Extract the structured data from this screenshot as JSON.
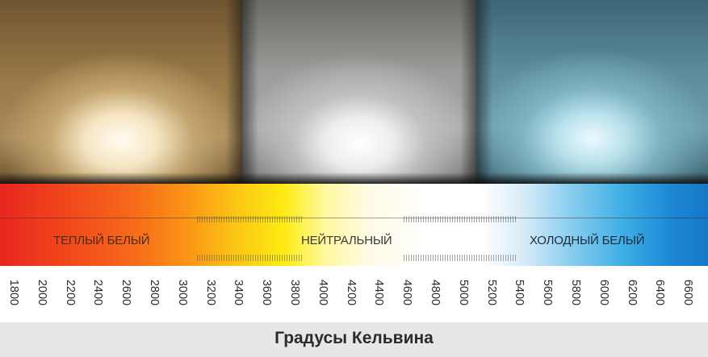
{
  "bands": {
    "warm_label": "ТЕПЛЫЙ БЕЛЫЙ",
    "neutral_label": "НЕЙТРАЛЬНЫЙ",
    "cold_label": "ХОЛОДНЫЙ БЕЛЫЙ"
  },
  "scale": {
    "ticks": [
      "1800",
      "2000",
      "2200",
      "2400",
      "2600",
      "2800",
      "3000",
      "3200",
      "3400",
      "3600",
      "3800",
      "4000",
      "4200",
      "4400",
      "4600",
      "4800",
      "5000",
      "5200",
      "5400",
      "5600",
      "5800",
      "6000",
      "6200",
      "6400",
      "6600"
    ]
  },
  "caption": "Градусы Кельвина",
  "colors": {
    "warm": "#e8261f",
    "yellow": "#fdeb12",
    "neutral": "#ffffff",
    "cold": "#1677c8",
    "caption_bg": "#e7e7e7"
  }
}
